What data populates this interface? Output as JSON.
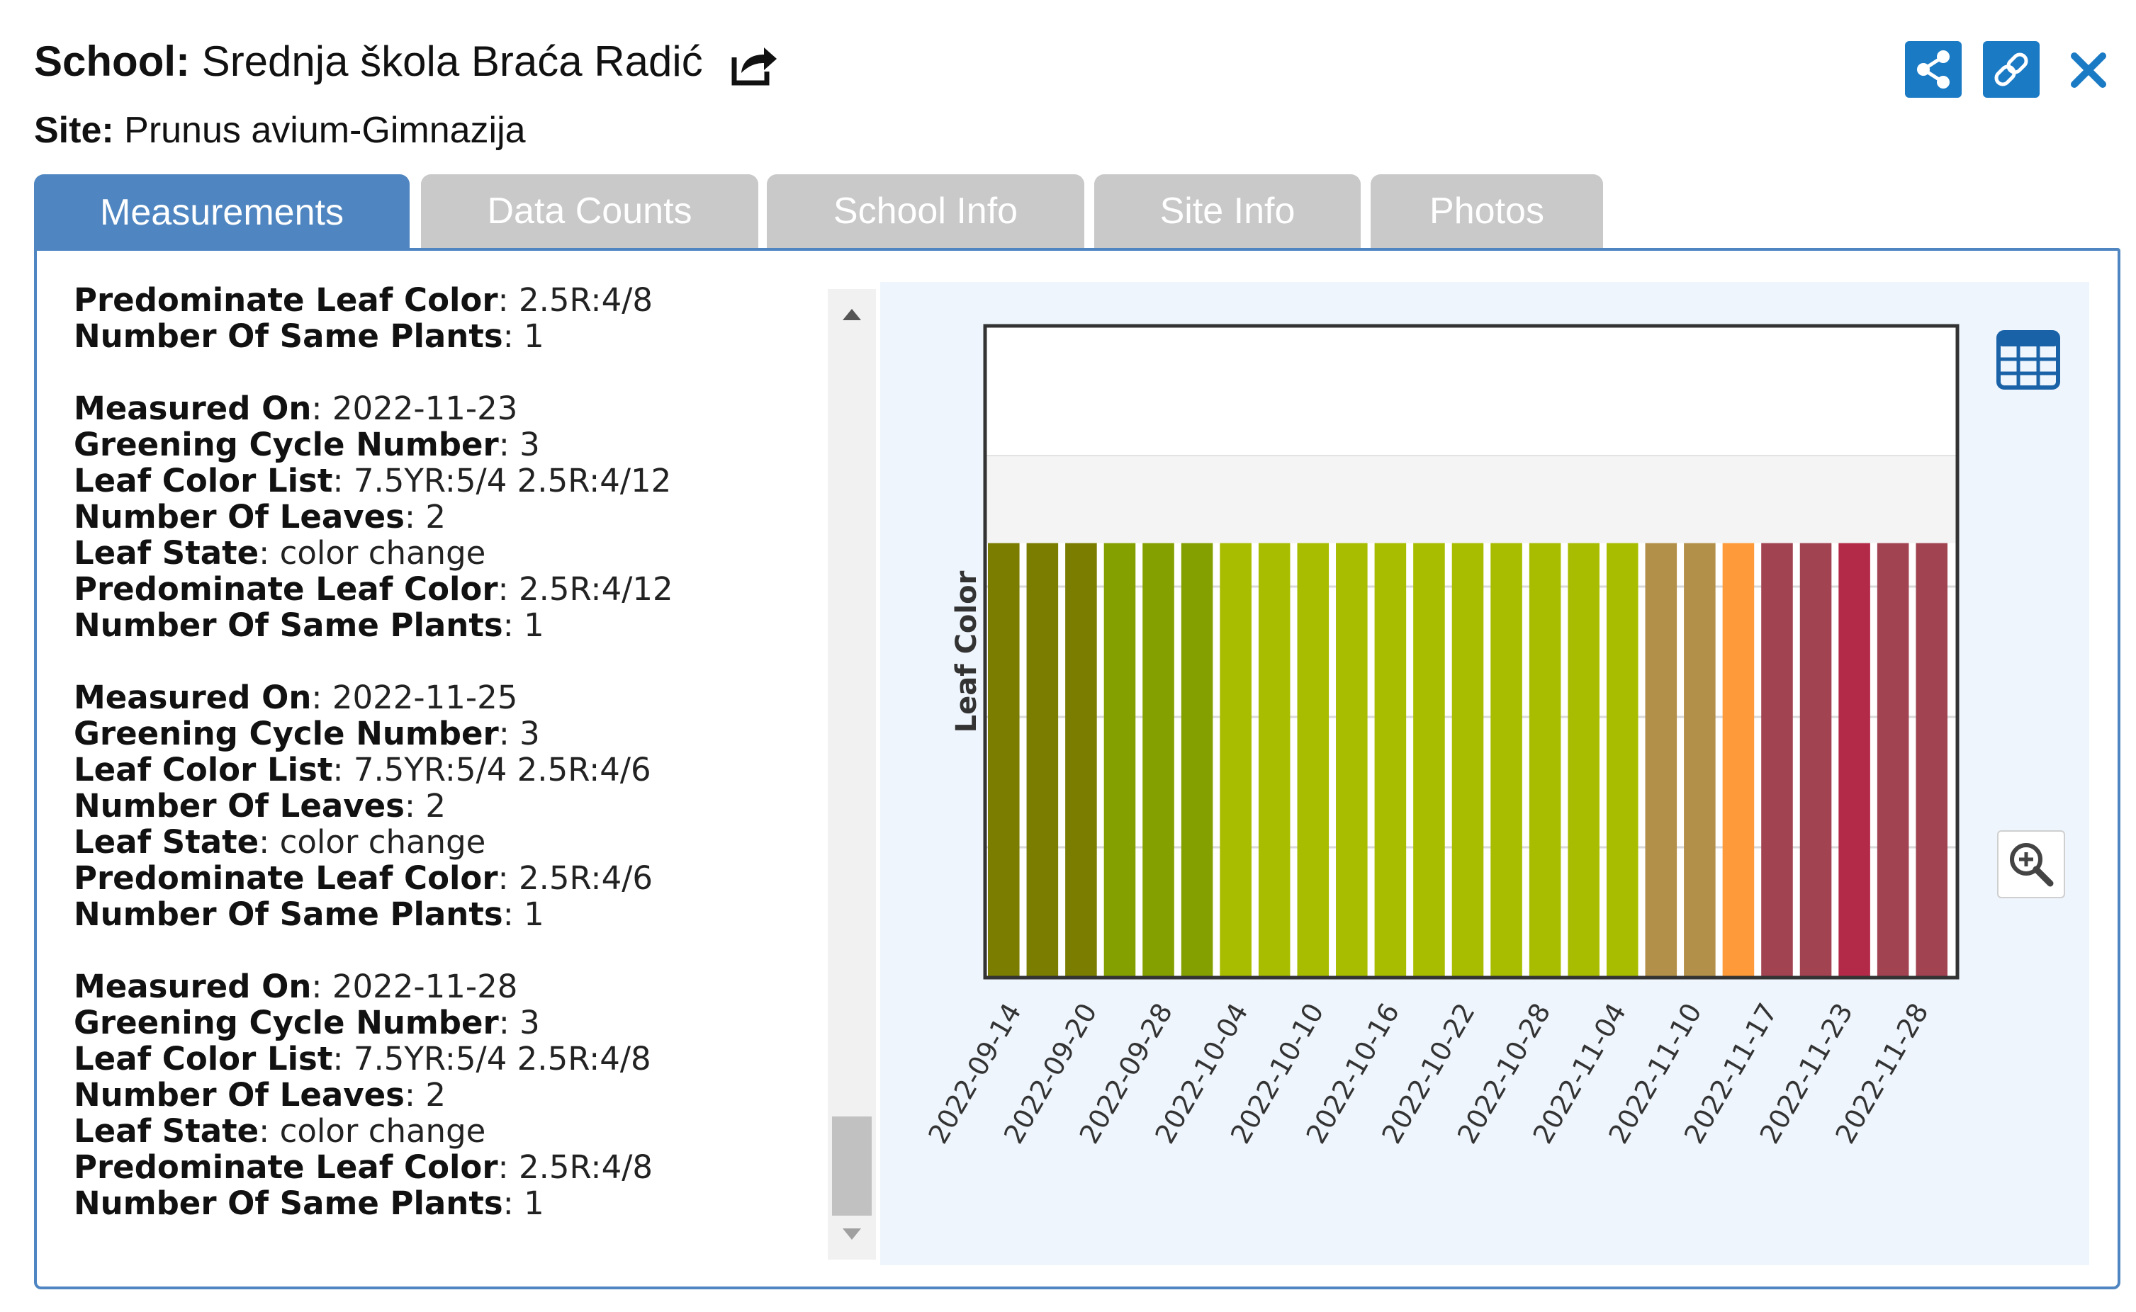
{
  "header": {
    "school_label": "School:",
    "school_name": "Srednja škola Braća Radić",
    "site_label": "Site:",
    "site_name": "Prunus avium-Gimnazija"
  },
  "icons": {
    "external": "external-link-icon",
    "share": "share-icon",
    "link": "link-icon",
    "close": "close-icon",
    "table": "table-icon",
    "zoom": "zoom-in-icon"
  },
  "colors": {
    "accent": "#4f86c1",
    "button": "#1a7ac4",
    "tab_inactive": "#c9c9c9"
  },
  "tabs": [
    {
      "label": "Measurements",
      "active": true
    },
    {
      "label": "Data Counts",
      "active": false
    },
    {
      "label": "School Info",
      "active": false
    },
    {
      "label": "Site Info",
      "active": false
    },
    {
      "label": "Photos",
      "active": false
    }
  ],
  "records": [
    [
      {
        "k": "Predominate Leaf Color",
        "v": "2.5R:4/8"
      },
      {
        "k": "Number Of Same Plants",
        "v": "1"
      }
    ],
    [
      {
        "k": "Measured On",
        "v": "2022-11-23"
      },
      {
        "k": "Greening Cycle Number",
        "v": "3"
      },
      {
        "k": "Leaf Color List",
        "v": "7.5YR:5/4 2.5R:4/12"
      },
      {
        "k": "Number Of Leaves",
        "v": "2"
      },
      {
        "k": "Leaf State",
        "v": "color change"
      },
      {
        "k": "Predominate Leaf Color",
        "v": "2.5R:4/12"
      },
      {
        "k": "Number Of Same Plants",
        "v": "1"
      }
    ],
    [
      {
        "k": "Measured On",
        "v": "2022-11-25"
      },
      {
        "k": "Greening Cycle Number",
        "v": "3"
      },
      {
        "k": "Leaf Color List",
        "v": "7.5YR:5/4 2.5R:4/6"
      },
      {
        "k": "Number Of Leaves",
        "v": "2"
      },
      {
        "k": "Leaf State",
        "v": "color change"
      },
      {
        "k": "Predominate Leaf Color",
        "v": "2.5R:4/6"
      },
      {
        "k": "Number Of Same Plants",
        "v": "1"
      }
    ],
    [
      {
        "k": "Measured On",
        "v": "2022-11-28"
      },
      {
        "k": "Greening Cycle Number",
        "v": "3"
      },
      {
        "k": "Leaf Color List",
        "v": "7.5YR:5/4 2.5R:4/8"
      },
      {
        "k": "Number Of Leaves",
        "v": "2"
      },
      {
        "k": "Leaf State",
        "v": "color change"
      },
      {
        "k": "Predominate Leaf Color",
        "v": "2.5R:4/8"
      },
      {
        "k": "Number Of Same Plants",
        "v": "1"
      }
    ]
  ],
  "chart_data": {
    "type": "bar",
    "ylabel": "Leaf Color",
    "xlabel": "",
    "grid": true,
    "tick_labels": [
      "2022-09-14",
      "2022-09-20",
      "2022-09-28",
      "2022-10-04",
      "2022-10-10",
      "2022-10-16",
      "2022-10-22",
      "2022-10-28",
      "2022-11-04",
      "2022-11-10",
      "2022-11-17",
      "2022-11-23",
      "2022-11-28"
    ],
    "values": [
      1,
      1,
      1,
      1,
      1,
      1,
      1,
      1,
      1,
      1,
      1,
      1,
      1,
      1,
      1,
      1,
      1,
      1,
      1,
      1,
      1,
      1,
      1,
      1,
      1
    ],
    "ylim": [
      0,
      1.5
    ],
    "bar_colors": [
      "#7a7d00",
      "#7a7d00",
      "#7a7d00",
      "#84a000",
      "#84a000",
      "#84a000",
      "#a9bd00",
      "#a9bd00",
      "#a9bd00",
      "#a9bd00",
      "#a9bd00",
      "#a9bd00",
      "#a9bd00",
      "#a9bd00",
      "#a9bd00",
      "#a9bd00",
      "#a9bd00",
      "#b3904a",
      "#b3904a",
      "#ff9a3a",
      "#a24352",
      "#a24352",
      "#b32a48",
      "#a24352",
      "#a24352"
    ]
  }
}
